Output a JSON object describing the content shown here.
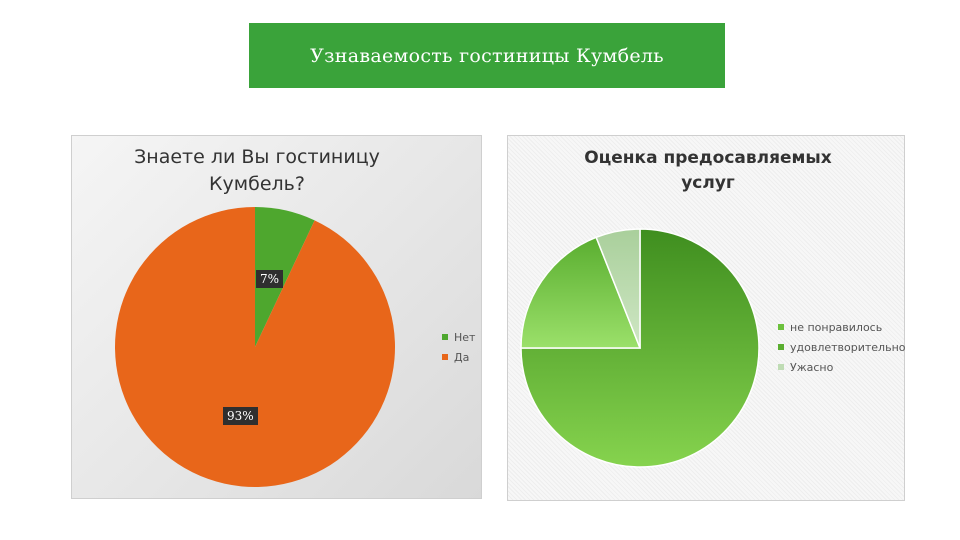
{
  "slide": {
    "title": "Узнаваемость гостиницы Кумбель"
  },
  "chart_data": [
    {
      "type": "pie",
      "title": "Знаете ли Вы гостиницу Кумбель?",
      "categories": [
        "Нет",
        "Да"
      ],
      "values": [
        7,
        93
      ],
      "data_labels": [
        "7%",
        "93%"
      ],
      "colors": [
        "#4ea72e",
        "#e8661a"
      ],
      "legend": "right"
    },
    {
      "type": "pie",
      "title": "Оценка предосавляемых услуг",
      "categories": [
        "не понравилось",
        "удовлетворительно",
        "Ужасно"
      ],
      "values": [
        75,
        19,
        6
      ],
      "colors": [
        "#6cc13d",
        "#8fd65c",
        "#bfdcb4"
      ],
      "legend": "right"
    }
  ]
}
